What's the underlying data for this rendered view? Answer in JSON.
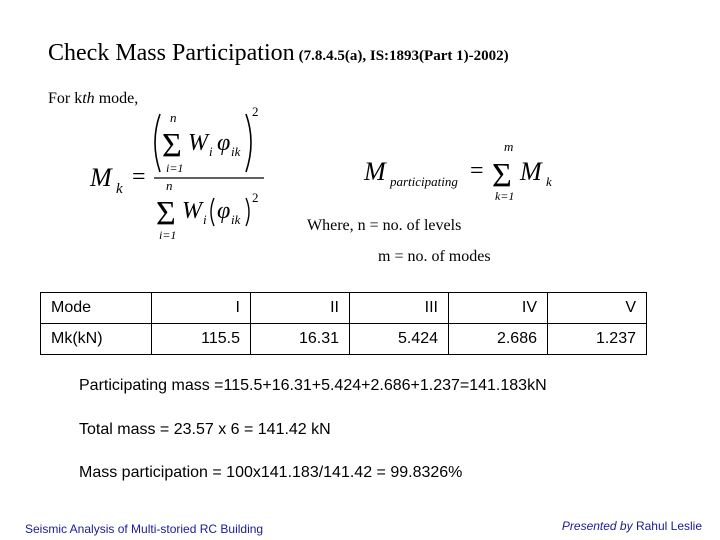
{
  "slide": {
    "title_main": "Check Mass Participation",
    "title_ref": "(7.8.4.5(a), IS:1893(Part 1)-2002)",
    "for_prefix": "For k",
    "for_italic": "th",
    "for_suffix": " mode,",
    "formula_mk": {
      "M": "M",
      "k": "k",
      "eq": "=",
      "n_top": "n",
      "i_eq_1_top": "i=1",
      "W": "W",
      "i": "i",
      "phi": "φ",
      "ik": "ik",
      "sq": "2",
      "n_bot": "n",
      "i_eq_1_bot": "i=1"
    },
    "formula_mp": {
      "M": "M",
      "sub": "participating",
      "eq": "=",
      "m": "m",
      "k_eq_1": "k=1",
      "Mk": "M",
      "k": "k"
    },
    "where_line1": "Where, n = no. of levels",
    "where_line2": "m = no. of modes",
    "table": {
      "rows": [
        {
          "label": "Mode",
          "cells": [
            "I",
            "II",
            "III",
            "IV",
            "V"
          ]
        },
        {
          "label": "Mk(kN)",
          "cells": [
            "115.5",
            "16.31",
            "5.424",
            "2.686",
            "1.237"
          ]
        }
      ]
    },
    "participating_mass": "Participating mass =115.5+16.31+5.424+2.686+1.237=141.183kN",
    "total_mass": "Total mass = 23.57 x 6 = 141.42 kN",
    "mass_participation": "Mass participation = 100x141.183/141.42 = 99.8326%",
    "footer_left": "Seismic Analysis of Multi-storied RC Building",
    "footer_presented": "Presented by",
    "footer_author": "Rahul Leslie"
  },
  "colors": {
    "footer": "#1a1a9a"
  }
}
